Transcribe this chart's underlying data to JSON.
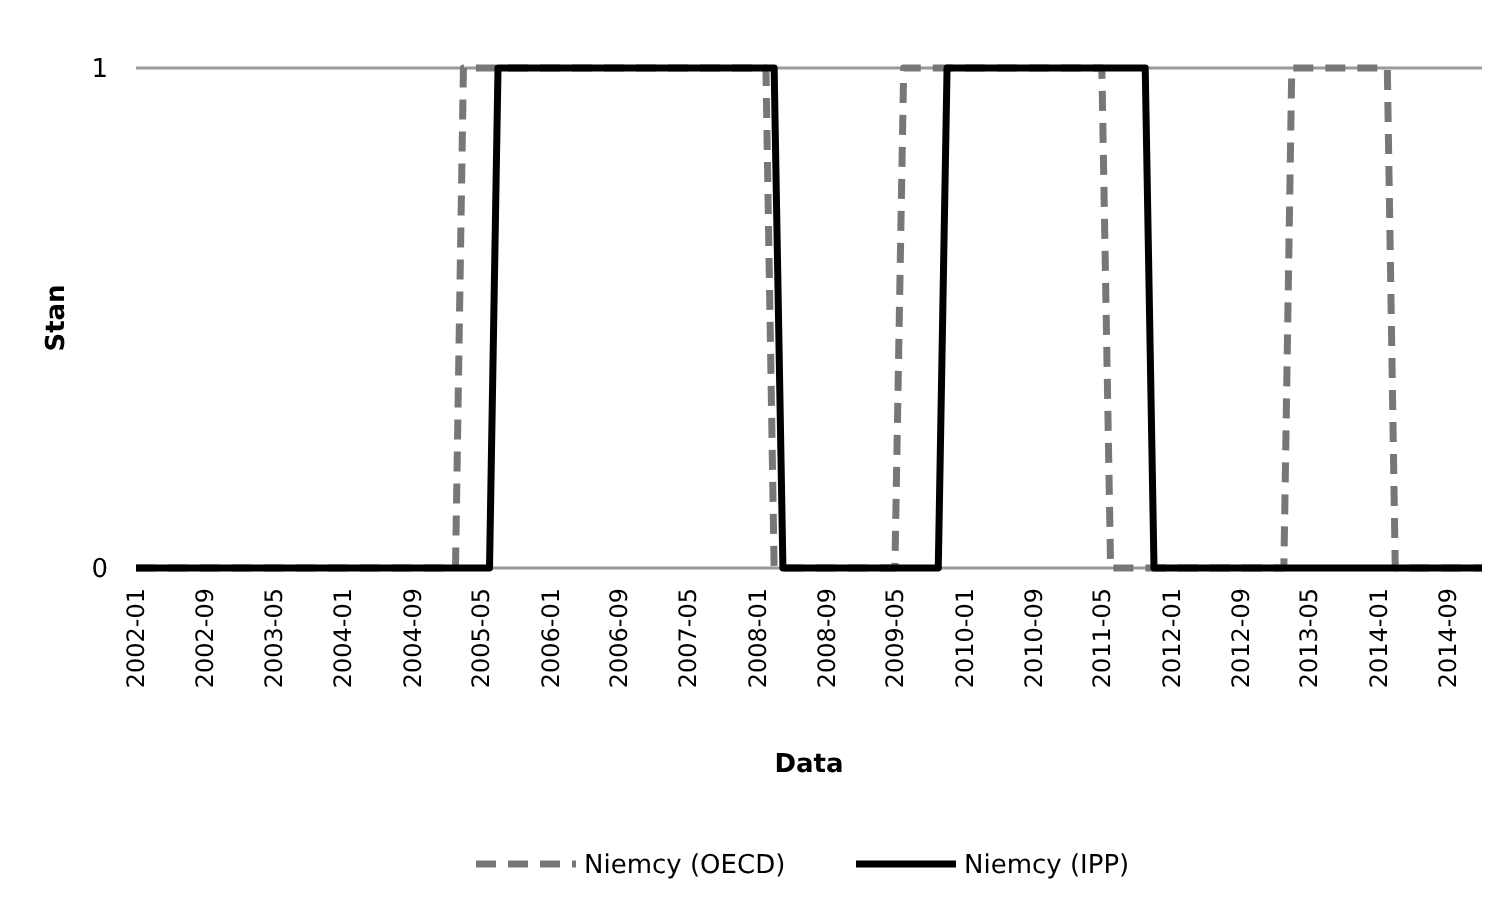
{
  "chart_data": {
    "type": "line",
    "xlabel": "Data",
    "ylabel": "Stan",
    "xlim": [
      "2002-01",
      "2015-01"
    ],
    "xticks": [
      "2002-01",
      "2002-09",
      "2003-05",
      "2004-01",
      "2004-09",
      "2005-05",
      "2006-01",
      "2006-09",
      "2007-05",
      "2008-01",
      "2008-09",
      "2009-05",
      "2010-01",
      "2010-09",
      "2011-05",
      "2012-01",
      "2012-09",
      "2013-05",
      "2014-01",
      "2014-09"
    ],
    "ylim": [
      0,
      1
    ],
    "yticks": [
      0,
      1
    ],
    "legend": "bottom",
    "series": [
      {
        "name": "Niemcy (OECD)",
        "color": "#777777",
        "line_style": "dashed",
        "x": [
          "2002-01",
          "2005-02",
          "2005-03",
          "2008-02",
          "2008-03",
          "2009-05",
          "2009-06",
          "2011-05",
          "2011-06",
          "2013-02",
          "2013-03",
          "2014-02",
          "2014-03",
          "2015-01"
        ],
        "values": [
          0,
          0,
          1,
          1,
          0,
          0,
          1,
          1,
          0,
          0,
          1,
          1,
          0,
          0
        ]
      },
      {
        "name": "Niemcy (IPP)",
        "color": "#000000",
        "line_style": "solid",
        "x": [
          "2002-01",
          "2005-06",
          "2005-07",
          "2008-03",
          "2008-04",
          "2009-10",
          "2009-11",
          "2011-10",
          "2011-11",
          "2015-01"
        ],
        "values": [
          0,
          0,
          1,
          1,
          0,
          0,
          1,
          1,
          0,
          0
        ]
      }
    ]
  }
}
